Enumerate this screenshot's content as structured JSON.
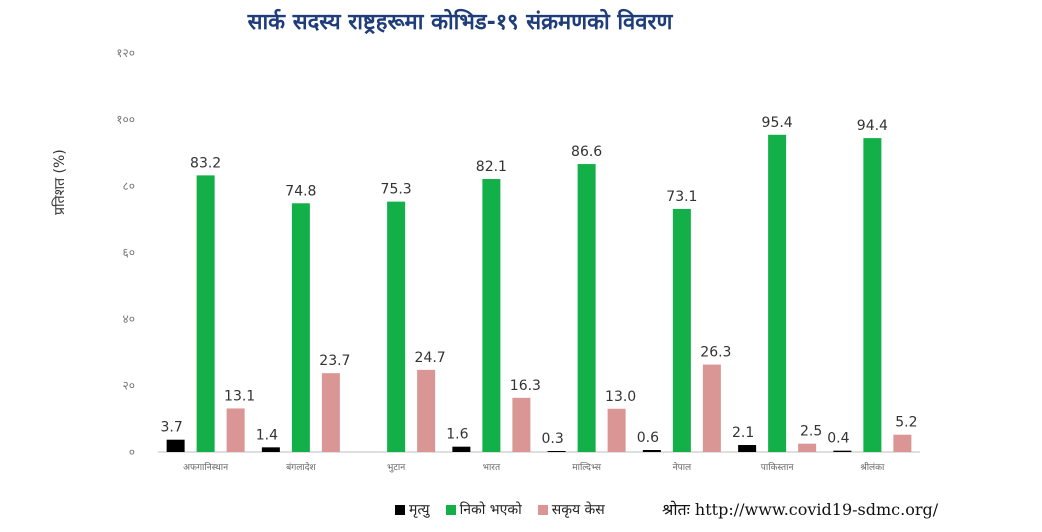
{
  "chart_data": {
    "type": "bar",
    "title": "सार्क सदस्य राष्ट्रहरूमा कोभिड-१९ संक्रमणको विवरण",
    "ylabel": "प्रतिशत (%)",
    "ylim": [
      0,
      120
    ],
    "yticks": [
      "०",
      "२०",
      "४०",
      "६०",
      "८०",
      "१००",
      "१२०"
    ],
    "categories": [
      "अफगानिस्थान",
      "बंगलादेश",
      "भुटान",
      "भारत",
      "माल्दिभ्स",
      "नेपाल",
      "पाकिस्तान",
      "श्रीलंका"
    ],
    "series": [
      {
        "name": "मृत्यु",
        "color": "#000000",
        "values": [
          3.7,
          1.4,
          0,
          1.6,
          0.3,
          0.6,
          2.1,
          0.4
        ],
        "labels": [
          "3.7",
          "1.4",
          "",
          "1.6",
          "0.3",
          "0.6",
          "2.1",
          "0.4"
        ]
      },
      {
        "name": "निको भएको",
        "color": "#13b04a",
        "values": [
          83.2,
          74.8,
          75.3,
          82.1,
          86.6,
          73.1,
          95.4,
          94.4
        ],
        "labels": [
          "83.2",
          "74.8",
          "75.3",
          "82.1",
          "86.6",
          "73.1",
          "95.4",
          "94.4"
        ]
      },
      {
        "name": "सकृय केस",
        "color": "#d99694",
        "values": [
          13.1,
          23.7,
          24.7,
          16.3,
          13.0,
          26.3,
          2.5,
          5.2
        ],
        "labels": [
          "13.1",
          "23.7",
          "24.7",
          "16.3",
          "13.0",
          "26.3",
          "2.5",
          "5.2"
        ]
      }
    ],
    "grid": false,
    "legend_position": "bottom"
  },
  "source": {
    "label": "श्रोतः",
    "url": "http://www.covid19-sdmc.org/"
  }
}
